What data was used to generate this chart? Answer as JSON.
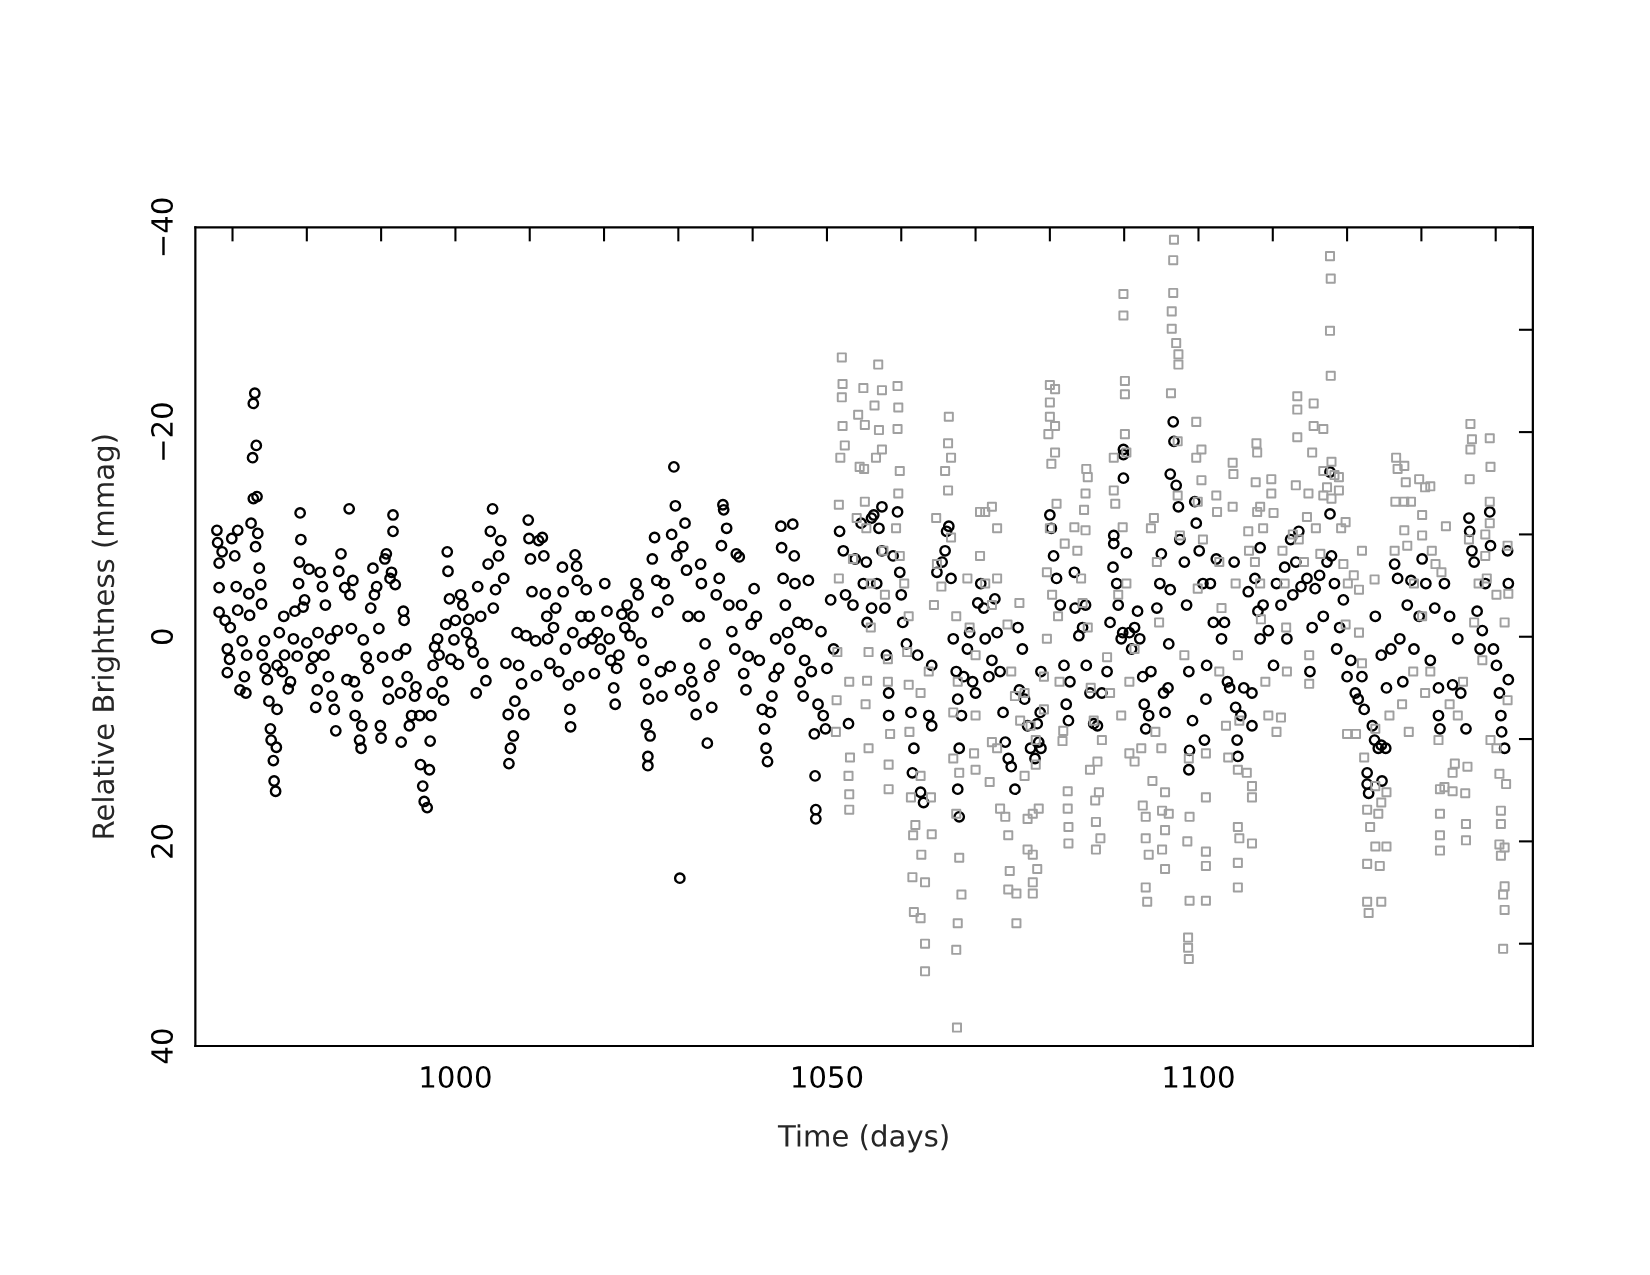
{
  "chart_data": {
    "type": "scatter",
    "xlabel": "Time (days)",
    "ylabel": "Relative Brightness (mmag)",
    "xlim": [
      965,
      1145
    ],
    "ylim": [
      40,
      -40
    ],
    "xticks": [
      {
        "value": 970,
        "label": null
      },
      {
        "value": 980,
        "label": null
      },
      {
        "value": 990,
        "label": null
      },
      1000,
      {
        "value": 1010,
        "label": null
      },
      {
        "value": 1020,
        "label": null
      },
      {
        "value": 1030,
        "label": null
      },
      {
        "value": 1040,
        "label": null
      },
      1050,
      {
        "value": 1060,
        "label": null
      },
      {
        "value": 1070,
        "label": null
      },
      {
        "value": 1080,
        "label": null
      },
      {
        "value": 1090,
        "label": null
      },
      1100,
      {
        "value": 1110,
        "label": null
      },
      {
        "value": 1120,
        "label": null
      },
      {
        "value": 1130,
        "label": null
      },
      {
        "value": 1140,
        "label": null
      }
    ],
    "yticks": [
      {
        "value": -40,
        "label": "−40"
      },
      {
        "value": -30,
        "label": null
      },
      {
        "value": -20,
        "label": "−20"
      },
      {
        "value": -10,
        "label": null
      },
      0,
      {
        "value": 10,
        "label": null
      },
      20,
      {
        "value": 30,
        "label": null
      },
      40
    ],
    "series": [
      {
        "color": "#000000",
        "marker": "circle",
        "x": [
          967.9,
          968.0,
          968.2,
          968.2,
          968.2,
          968.6,
          969.0,
          969.3,
          969.3,
          969.6,
          969.7,
          969.9,
          970.3,
          970.5,
          970.7,
          970.7,
          971.0,
          971.3,
          971.6,
          971.8,
          971.9,
          972.2,
          972.3,
          972.5,
          972.7,
          972.8,
          973.0,
          973.2,
          972.8,
          973.3,
          973.1,
          973.4,
          973.6,
          973.8,
          973.9,
          974.0,
          974.3,
          974.4,
          974.7,
          974.9,
          975.1,
          975.2,
          975.5,
          975.6,
          975.8,
          975.9,
          976.0,
          976.0,
          976.3,
          976.7,
          976.9,
          977.0,
          977.5,
          977.8,
          978.2,
          978.4,
          978.7,
          979.0,
          979.1,
          979.2,
          978.9,
          979.5,
          979.7,
          980.0,
          980.3,
          980.6,
          980.9,
          981.2,
          981.4,
          981.5,
          981.8,
          982.1,
          982.3,
          982.5,
          982.9,
          983.2,
          983.4,
          983.7,
          983.9,
          984.1,
          984.3,
          984.6,
          985.1,
          985.4,
          985.7,
          985.8,
          986.0,
          986.2,
          986.4,
          986.5,
          986.8,
          987.1,
          987.3,
          987.4,
          987.6,
          988.0,
          988.3,
          988.6,
          988.9,
          989.1,
          989.4,
          989.7,
          989.9,
          990.0,
          990.2,
          990.5,
          990.7,
          990.9,
          991.0,
          991.2,
          991.4,
          991.6,
          991.6,
          991.9,
          992.2,
          992.6,
          992.7,
          993.0,
          993.1,
          993.3,
          993.5,
          993.8,
          994.1,
          994.5,
          994.7,
          995.2,
          995.3,
          995.6,
          995.8,
          996.2,
          996.5,
          996.6,
          996.7,
          996.9,
          997.0,
          997.2,
          997.6,
          997.8,
          998.2,
          998.4,
          998.7,
          998.9,
          999.0,
          999.2,
          999.4,
          999.8,
          1000.0,
          1000.4,
          1000.7,
          1001.0,
          1001.5,
          1001.8,
          1002.1,
          1002.4,
          1002.8,
          1003.0,
          1003.4,
          1003.7,
          1004.1,
          1004.4,
          1004.7,
          1005.0,
          1005.1,
          1005.4,
          1005.8,
          1006.1,
          1006.5,
          1006.8,
          1007.1,
          1007.2,
          1007.4,
          1007.8,
          1008.0,
          1008.3,
          1008.5,
          1008.9,
          1009.2,
          1009.5,
          1009.8,
          1009.9,
          1010.1,
          1010.3,
          1010.8,
          1010.9,
          1011.2,
          1011.7,
          1011.9,
          1012.1,
          1012.3,
          1012.4,
          1012.7,
          1013.2,
          1013.5,
          1013.9,
          1014.4,
          1014.5,
          1014.8,
          1015.2,
          1015.4,
          1015.5,
          1015.8,
          1016.1,
          1016.3,
          1016.4,
          1016.6,
          1016.9,
          1017.2,
          1017.6,
          1018.0,
          1018.4,
          1018.7,
          1019.1,
          1019.5,
          1020.1,
          1020.4,
          1020.7,
          1020.9,
          1021.3,
          1021.5,
          1021.7,
          1022.0,
          1022.4,
          1022.8,
          1023.1,
          1023.5,
          1023.9,
          1024.3,
          1024.6,
          1025.0,
          1025.3,
          1025.6,
          1025.7,
          1025.9,
          1025.9,
          1026.2,
          1026.0,
          1026.5,
          1026.8,
          1027.1,
          1027.2,
          1027.6,
          1027.8,
          1028.1,
          1028.6,
          1028.9,
          1029.1,
          1029.4,
          1029.6,
          1029.8,
          1030.2,
          1030.3,
          1030.6,
          1030.9,
          1031.1,
          1031.3,
          1031.5,
          1031.8,
          1032.1,
          1032.4,
          1032.8,
          1033.0,
          1033.1,
          1033.6,
          1033.9,
          1034.2,
          1034.5,
          1034.8,
          1035.1,
          1035.5,
          1035.8,
          1036.0,
          1036.1,
          1036.5,
          1036.8,
          1037.2,
          1037.6,
          1037.8,
          1038.2,
          1038.5,
          1038.8,
          1039.1,
          1039.4,
          1039.8,
          1040.2,
          1040.5,
          1040.9,
          1041.3,
          1041.6,
          1041.8,
          1042.0,
          1042.4,
          1042.6,
          1042.9,
          1043.1,
          1043.5,
          1043.8,
          1043.9,
          1044.1,
          1044.4,
          1044.7,
          1045.0,
          1045.4,
          1045.6,
          1045.7,
          1046.1,
          1046.4,
          1046.8,
          1047.0,
          1047.3,
          1047.5,
          1047.9,
          1048.3,
          1048.4,
          1048.5,
          1048.5,
          1048.8,
          1049.2,
          1049.5,
          1049.8,
          1050.0,
          1050.5,
          1050.9,
          1051.7,
          1052.2,
          1052.5,
          1052.9,
          1053.5,
          1053.8,
          1054.6,
          1054.9,
          1055.3,
          1056.0,
          1056.3,
          1057.0,
          1057.4,
          1057.4,
          1056.7,
          1056.0,
          1055.4,
          1057.8,
          1058.0,
          1058.3,
          1058.3,
          1058.9,
          1059.5,
          1059.8,
          1060.0,
          1060.2,
          1060.7,
          1061.3,
          1061.7,
          1061.5,
          1062.2,
          1062.6,
          1063.0,
          1063.7,
          1064.1,
          1064.1,
          1064.8,
          1065.5,
          1065.9,
          1066.1,
          1066.4,
          1066.7,
          1067.0,
          1067.4,
          1067.6,
          1067.8,
          1067.6,
          1067.8,
          1068.1,
          1068.4,
          1068.9,
          1069.2,
          1069.6,
          1070.0,
          1070.3,
          1070.7,
          1071.1,
          1071.3,
          1071.8,
          1072.2,
          1072.6,
          1072.9,
          1073.3,
          1073.7,
          1074.0,
          1074.4,
          1074.8,
          1075.3,
          1075.7,
          1075.9,
          1076.3,
          1076.6,
          1077.0,
          1077.4,
          1078.0,
          1078.3,
          1078.5,
          1078.7,
          1078.8,
          1078.8,
          1080.0,
          1080.2,
          1080.5,
          1080.9,
          1081.4,
          1081.9,
          1082.2,
          1082.5,
          1082.7,
          1083.3,
          1083.4,
          1083.9,
          1084.4,
          1084.8,
          1084.9,
          1085.4,
          1085.9,
          1086.4,
          1087.0,
          1087.7,
          1088.1,
          1088.5,
          1088.6,
          1088.6,
          1089.0,
          1089.2,
          1089.6,
          1089.8,
          1089.9,
          1089.9,
          1089.9,
          1090.3,
          1090.7,
          1091.0,
          1091.4,
          1091.8,
          1092.1,
          1092.5,
          1092.7,
          1092.9,
          1093.3,
          1093.6,
          1094.4,
          1094.8,
          1095.0,
          1095.3,
          1095.5,
          1095.9,
          1096.0,
          1096.2,
          1096.2,
          1096.6,
          1096.7,
          1097.0,
          1097.3,
          1097.5,
          1098.1,
          1098.4,
          1098.7,
          1098.8,
          1098.7,
          1099.2,
          1099.5,
          1099.7,
          1100.1,
          1100.6,
          1100.8,
          1101.0,
          1101.1,
          1101.6,
          1102.0,
          1102.4,
          1103.1,
          1103.5,
          1103.9,
          1104.2,
          1104.8,
          1105.0,
          1105.2,
          1105.3,
          1105.7,
          1106.1,
          1106.7,
          1107.2,
          1107.2,
          1107.6,
          1108.0,
          1108.3,
          1108.3,
          1108.7,
          1109.4,
          1110.1,
          1110.5,
          1111.1,
          1111.6,
          1111.9,
          1112.4,
          1112.7,
          1113.1,
          1113.5,
          1113.8,
          1114.6,
          1115.0,
          1115.3,
          1115.7,
          1116.3,
          1116.8,
          1117.3,
          1117.7,
          1117.7,
          1117.9,
          1118.3,
          1118.6,
          1119.0,
          1119.5,
          1120.0,
          1120.5,
          1121.1,
          1121.5,
          1122.0,
          1122.3,
          1122.7,
          1122.7,
          1122.9,
          1123.4,
          1123.7,
          1124.2,
          1124.6,
          1125.2,
          1124.7,
          1123.8,
          1124.6,
          1125.3,
          1125.9,
          1126.4,
          1126.8,
          1127.1,
          1127.5,
          1128.1,
          1128.6,
          1129.0,
          1129.7,
          1130.1,
          1130.6,
          1131.2,
          1131.8,
          1132.3,
          1132.3,
          1132.5,
          1133.1,
          1133.8,
          1134.2,
          1134.9,
          1135.3,
          1136.0,
          1136.4,
          1136.5,
          1136.8,
          1137.1,
          1137.5,
          1137.9,
          1138.2,
          1138.6,
          1139.2,
          1139.3,
          1139.7,
          1140.1,
          1140.5,
          1140.7,
          1140.8,
          1141.2,
          1141.6,
          1141.7,
          1141.7
        ],
        "values": [
          -10.4,
          -9.2,
          -7.2,
          -4.8,
          -2.4,
          -8.3,
          -1.6,
          1.2,
          3.5,
          2.2,
          -0.9,
          -9.6,
          -7.9,
          -4.9,
          -10.4,
          -2.6,
          5.2,
          0.4,
          3.9,
          5.5,
          1.8,
          -4.2,
          -2.1,
          -11.1,
          -17.5,
          -22.8,
          -23.8,
          -18.7,
          -13.5,
          -13.7,
          -8.8,
          -10.1,
          -6.7,
          -5.1,
          -3.2,
          1.8,
          0.4,
          3.1,
          4.2,
          6.3,
          9.0,
          10.1,
          12.1,
          14.1,
          15.1,
          10.8,
          7.1,
          2.8,
          -0.4,
          3.4,
          -2.0,
          1.8,
          5.1,
          4.4,
          0.2,
          -2.5,
          1.9,
          -7.3,
          -12.1,
          -9.5,
          -5.2,
          -2.9,
          -3.6,
          0.6,
          -6.6,
          3.1,
          2.0,
          6.9,
          5.2,
          -0.4,
          -6.3,
          -4.9,
          1.8,
          -3.1,
          3.9,
          0.2,
          5.8,
          7.1,
          9.2,
          -0.6,
          -6.4,
          -8.1,
          -4.8,
          4.2,
          -12.5,
          -4.1,
          -0.8,
          -5.5,
          4.4,
          7.7,
          5.8,
          10.1,
          10.9,
          8.7,
          0.3,
          2.0,
          3.1,
          -2.8,
          -6.7,
          -4.1,
          -4.9,
          -0.8,
          8.7,
          9.9,
          2.0,
          -7.6,
          -8.1,
          4.4,
          6.1,
          -5.7,
          -6.3,
          -11.9,
          -10.3,
          -5.1,
          1.8,
          5.5,
          10.3,
          -2.5,
          -1.6,
          1.2,
          3.9,
          8.7,
          7.7,
          5.8,
          4.9,
          7.7,
          12.5,
          14.6,
          16.1,
          16.7,
          13.0,
          10.2,
          7.7,
          5.5,
          2.8,
          1.0,
          0.2,
          1.8,
          4.4,
          6.2,
          -1.2,
          -8.3,
          -6.4,
          -3.7,
          2.2,
          0.3,
          -1.6,
          2.7,
          -4.1,
          -3.1,
          -0.4,
          -1.7,
          0.6,
          1.5,
          5.5,
          -4.9,
          -2.0,
          2.6,
          4.3,
          -7.1,
          -10.3,
          -12.5,
          -2.8,
          -4.6,
          -7.9,
          -9.4,
          -5.7,
          2.6,
          7.6,
          12.4,
          10.9,
          9.7,
          6.3,
          -0.4,
          2.8,
          4.6,
          7.6,
          -0.1,
          -11.4,
          -9.6,
          -7.6,
          -4.4,
          0.4,
          3.8,
          -9.4,
          -9.7,
          -7.9,
          -4.2,
          -2.0,
          0.2,
          2.6,
          -0.9,
          -2.8,
          3.4,
          -6.8,
          -4.4,
          1.2,
          4.7,
          7.1,
          8.8,
          -0.4,
          -8.0,
          -6.9,
          -5.5,
          3.9,
          -2.0,
          0.6,
          -4.6,
          -2.0,
          0.2,
          3.6,
          -0.4,
          1.2,
          -5.2,
          -2.5,
          0.2,
          2.3,
          5.0,
          6.6,
          3.1,
          1.8,
          -2.2,
          -0.9,
          -3.1,
          -0.1,
          -2.0,
          -5.2,
          -4.1,
          0.6,
          2.3,
          4.6,
          8.6,
          11.7,
          12.6,
          9.7,
          6.1,
          -7.6,
          -9.7,
          -5.5,
          -2.4,
          3.4,
          5.8,
          -5.2,
          -3.6,
          2.9,
          -10.0,
          -16.6,
          -12.8,
          -7.9,
          23.6,
          5.2,
          -8.8,
          -11.1,
          -6.5,
          -2.0,
          3.1,
          4.4,
          5.8,
          7.6,
          -2.0,
          -7.1,
          -5.2,
          0.7,
          10.4,
          3.9,
          6.9,
          2.8,
          -4.1,
          -5.7,
          -8.9,
          -12.9,
          -12.4,
          -10.6,
          -3.1,
          -0.5,
          1.2,
          -8.1,
          -7.8,
          -3.1,
          3.6,
          5.2,
          1.9,
          -1.2,
          -4.7,
          -2.0,
          2.3,
          7.1,
          9.0,
          10.9,
          12.2,
          7.4,
          5.8,
          3.9,
          0.2,
          3.1,
          -10.8,
          -8.7,
          -5.7,
          -3.1,
          -0.4,
          1.2,
          -11.0,
          -7.9,
          -5.2,
          -1.4,
          4.4,
          5.8,
          2.3,
          -1.2,
          -5.5,
          3.4,
          9.5,
          13.6,
          16.9,
          17.8,
          6.6,
          -0.5,
          7.7,
          9.0,
          3.1,
          -3.6,
          1.2,
          -10.3,
          -8.4,
          -4.1,
          8.5,
          -3.1,
          -7.6,
          -11.1,
          -5.2,
          -7.3,
          -11.6,
          -11.9,
          -10.6,
          -12.7,
          -8.4,
          -5.2,
          -2.8,
          -1.4,
          -2.8,
          1.8,
          5.5,
          7.7,
          -7.9,
          -12.2,
          -6.3,
          -4.1,
          -1.4,
          0.7,
          7.4,
          10.9,
          13.3,
          1.8,
          15.2,
          16.2,
          7.7,
          8.7,
          2.8,
          -6.3,
          -7.3,
          -8.4,
          -10.3,
          -10.8,
          -5.7,
          0.2,
          3.4,
          6.1,
          10.9,
          14.9,
          17.6,
          7.7,
          3.9,
          1.2,
          -0.4,
          4.4,
          5.5,
          -3.3,
          -5.2,
          -2.8,
          0.2,
          3.9,
          2.3,
          -3.7,
          -0.4,
          3.4,
          7.4,
          10.3,
          11.9,
          12.7,
          14.9,
          -0.9,
          5.2,
          1.2,
          6.1,
          8.7,
          10.9,
          11.9,
          8.5,
          10.3,
          7.4,
          10.9,
          3.4,
          -11.9,
          -10.6,
          -7.9,
          -5.7,
          -3.1,
          2.8,
          6.6,
          8.2,
          4.4,
          -6.3,
          -2.8,
          -0.1,
          -0.9,
          -3.1,
          2.8,
          5.5,
          8.5,
          8.7,
          5.5,
          3.4,
          -1.4,
          -6.8,
          -9.9,
          -9.1,
          -5.2,
          -3.1,
          0.2,
          -0.4,
          -18.3,
          -17.8,
          -15.5,
          -8.2,
          -0.4,
          1.2,
          -0.9,
          -2.5,
          0.2,
          3.9,
          6.6,
          9.0,
          7.7,
          3.4,
          -2.8,
          -5.2,
          -8.1,
          5.5,
          7.4,
          5.0,
          0.7,
          -4.6,
          -15.9,
          -21.0,
          -19.1,
          -14.8,
          -12.7,
          -9.5,
          -7.3,
          -3.1,
          3.4,
          11.1,
          13.0,
          8.2,
          -13.2,
          -11.1,
          -8.4,
          -5.2,
          10.1,
          6.1,
          2.8,
          -5.2,
          -1.4,
          -7.6,
          0.2,
          -1.4,
          4.4,
          5.0,
          -7.3,
          6.9,
          10.1,
          11.7,
          7.7,
          5.0,
          -4.4,
          5.5,
          8.7,
          -5.7,
          -2.5,
          -8.7,
          0.2,
          -3.1,
          -0.6,
          2.8,
          -5.2,
          -3.1,
          -6.8,
          0.2,
          -9.5,
          -4.1,
          -7.3,
          -10.3,
          -4.9,
          -5.7,
          3.4,
          -0.9,
          -4.7,
          -6.0,
          -2.0,
          -7.3,
          -12.0,
          -16.1,
          -7.9,
          -5.2,
          1.2,
          -0.9,
          -3.6,
          3.9,
          2.3,
          5.5,
          6.1,
          3.9,
          7.1,
          13.3,
          14.4,
          15.3,
          8.7,
          10.1,
          10.9,
          10.6,
          10.9,
          14.1,
          -2.0,
          1.8,
          5.0,
          1.2,
          -7.1,
          -5.7,
          0.2,
          4.4,
          -3.1,
          -5.5,
          1.2,
          -2.0,
          -7.6,
          -5.2,
          2.3,
          -2.8,
          5.0,
          7.7,
          9.0,
          -5.2,
          -2.0,
          4.7,
          0.2,
          5.5,
          9.0,
          -11.6,
          -10.3,
          -8.4,
          -7.3,
          -2.5,
          1.2,
          -0.6,
          -5.2,
          -12.2,
          -8.9,
          1.2,
          2.8,
          5.5,
          7.7,
          9.3,
          10.9,
          -8.4,
          -5.2,
          4.2
        ]
      },
      {
        "color": "#a0a0a0",
        "marker": "square",
        "x": [
          1052.0,
          1052.1,
          1052.0,
          1052.1,
          1052.4,
          1051.8,
          1051.6,
          1051.6,
          1051.4,
          1051.3,
          1051.2,
          1053.1,
          1052.9,
          1053.0,
          1053.0,
          1053.0,
          1053.5,
          1054.0,
          1054.2,
          1054.4,
          1054.9,
          1055.1,
          1055.1,
          1055.4,
          1055.6,
          1055.2,
          1056.4,
          1056.6,
          1056.9,
          1057.4,
          1057.0,
          1057.4,
          1059.5,
          1059.6,
          1059.5,
          1059.8,
          1059.6,
          1055.0,
          1055.3,
          1055.9,
          1055.9,
          1055.6,
          1057.6,
          1057.8,
          1058.2,
          1058.2,
          1058.5,
          1058.3,
          1058.3,
          1059.3,
          1059.8,
          1060.4,
          1061.0,
          1060.8,
          1061.0,
          1061.1,
          1061.3,
          1061.6,
          1061.9,
          1061.5,
          1061.7,
          1062.6,
          1062.7,
          1063.2,
          1063.2,
          1063.2,
          1064.1,
          1064.0,
          1062.6,
          1062.6,
          1063.7,
          1064.4,
          1064.8,
          1065.4,
          1064.7,
          1065.9,
          1066.3,
          1066.4,
          1066.7,
          1066.3,
          1066.7,
          1067.4,
          1067.6,
          1067.0,
          1067.0,
          1067.8,
          1067.4,
          1067.8,
          1068.1,
          1067.6,
          1067.4,
          1067.5,
          1069.2,
          1068.9,
          1070.0,
          1070.6,
          1071.3,
          1072.2,
          1070.6,
          1071.3,
          1072.2,
          1072.9,
          1072.9,
          1070.0,
          1069.8,
          1070.0,
          1071.9,
          1072.2,
          1072.9,
          1073.3,
          1074.0,
          1074.4,
          1074.6,
          1074.4,
          1075.5,
          1075.5,
          1075.9,
          1074.3,
          1074.8,
          1075.3,
          1076.0,
          1076.6,
          1077.0,
          1077.7,
          1078.5,
          1077.0,
          1077.7,
          1078.3,
          1077.7,
          1077.7,
          1076.6,
          1077.4,
          1078.1,
          1078.1,
          1079.2,
          1079.2,
          1079.6,
          1080.0,
          1080.7,
          1080.0,
          1080.0,
          1080.7,
          1079.8,
          1080.7,
          1080.2,
          1080.9,
          1080.0,
          1080.3,
          1081.1,
          1079.6,
          1081.3,
          1081.8,
          1081.7,
          1082.4,
          1082.4,
          1082.5,
          1082.5,
          1082.0,
          1083.3,
          1083.7,
          1084.2,
          1084.8,
          1084.6,
          1084.8,
          1085.1,
          1084.9,
          1084.4,
          1085.1,
          1085.5,
          1085.9,
          1085.4,
          1086.4,
          1086.1,
          1086.2,
          1086.6,
          1086.8,
          1086.2,
          1087.0,
          1087.7,
          1088.1,
          1088.6,
          1088.6,
          1088.8,
          1089.2,
          1089.8,
          1089.9,
          1089.9,
          1090.1,
          1090.1,
          1090.1,
          1090.3,
          1090.3,
          1089.6,
          1090.7,
          1091.4,
          1090.7,
          1091.4,
          1092.3,
          1092.5,
          1092.9,
          1092.9,
          1093.3,
          1092.9,
          1093.1,
          1093.8,
          1094.2,
          1093.6,
          1094.0,
          1094.4,
          1094.7,
          1095.0,
          1095.5,
          1095.1,
          1095.5,
          1095.1,
          1095.5,
          1096.0,
          1096.3,
          1096.4,
          1096.4,
          1096.6,
          1096.7,
          1096.6,
          1097.0,
          1097.3,
          1097.3,
          1097.2,
          1097.2,
          1097.5,
          1098.1,
          1098.6,
          1098.6,
          1098.7,
          1098.8,
          1098.5,
          1098.8,
          1098.7,
          1099.7,
          1099.7,
          1100.4,
          1099.9,
          1100.4,
          1100.6,
          1099.9,
          1101.0,
          1101.0,
          1101.0,
          1101.0,
          1101.0,
          1102.4,
          1102.5,
          1102.8,
          1103.1,
          1102.8,
          1103.7,
          1104.0,
          1104.6,
          1104.7,
          1104.6,
          1105.0,
          1105.3,
          1105.5,
          1105.3,
          1105.3,
          1105.5,
          1105.3,
          1105.3,
          1106.5,
          1107.2,
          1107.2,
          1107.2,
          1106.7,
          1106.8,
          1107.6,
          1107.8,
          1107.9,
          1107.7,
          1107.9,
          1108.3,
          1108.7,
          1108.3,
          1108.4,
          1109.0,
          1109.4,
          1109.8,
          1109.8,
          1110.1,
          1110.5,
          1111.1,
          1111.3,
          1111.6,
          1111.8,
          1111.9,
          1112.7,
          1113.1,
          1113.3,
          1113.3,
          1113.3,
          1113.5,
          1114.2,
          1114.6,
          1114.8,
          1114.9,
          1114.9,
          1115.3,
          1115.5,
          1115.5,
          1116.8,
          1115.8,
          1116.4,
          1116.8,
          1116.8,
          1117.3,
          1117.7,
          1117.8,
          1117.7,
          1117.8,
          1117.9,
          1117.9,
          1118.3,
          1118.9,
          1118.9,
          1119.2,
          1119.8,
          1119.5,
          1120.1,
          1120.9,
          1121.6,
          1121.6,
          1122.0,
          1119.8,
          1120.0,
          1121.2,
          1122.0,
          1122.3,
          1122.7,
          1122.7,
          1122.7,
          1122.9,
          1123.1,
          1123.8,
          1124.4,
          1124.6,
          1124.2,
          1124.6,
          1125.3,
          1125.3,
          1123.8,
          1123.8,
          1123.7,
          1125.7,
          1126.4,
          1126.5,
          1126.6,
          1126.8,
          1127.7,
          1127.9,
          1127.7,
          1128.6,
          1127.7,
          1128.1,
          1128.3,
          1127.4,
          1129.0,
          1128.9,
          1129.7,
          1130.5,
          1131.2,
          1130.1,
          1130.1,
          1130.5,
          1131.2,
          1130.1,
          1131.4,
          1131.9,
          1132.7,
          1133.3,
          1132.3,
          1132.5,
          1132.5,
          1132.5,
          1132.5,
          1133.1,
          1134.2,
          1134.2,
          1134.5,
          1135.9,
          1136.0,
          1136.0,
          1136.2,
          1133.8,
          1134.9,
          1135.6,
          1136.4,
          1136.5,
          1136.6,
          1136.8,
          1136.6,
          1139.2,
          1139.3,
          1139.2,
          1139.2,
          1138.6,
          1138.6,
          1138.8,
          1137.7,
          1137.1,
          1138.2,
          1139.3,
          1140.1,
          1140.5,
          1141.4,
          1140.7,
          1140.7,
          1140.5,
          1140.7,
          1141.2,
          1141.2,
          1141.0,
          1141.2,
          1141.0,
          1141.6,
          1141.7,
          1141.2,
          1141.6,
          1140.1
        ],
        "values": [
          -27.3,
          -24.7,
          -23.4,
          -20.6,
          -18.7,
          -17.5,
          -12.9,
          -5.7,
          1.5,
          6.2,
          9.3,
          11.8,
          13.6,
          15.4,
          16.9,
          4.4,
          -7.6,
          -11.6,
          -21.7,
          -16.6,
          -24.3,
          -20.7,
          -13.2,
          4.3,
          10.9,
          6.6,
          -22.6,
          -17.5,
          -26.6,
          -24.1,
          -20.2,
          -18.3,
          -24.5,
          -22.4,
          -20.3,
          -16.2,
          -14.0,
          -16.4,
          -10.6,
          -5.2,
          -0.9,
          1.5,
          -8.4,
          -4.1,
          2.2,
          4.4,
          9.5,
          12.5,
          14.9,
          -10.6,
          -7.9,
          -5.2,
          -2.0,
          1.5,
          4.7,
          9.3,
          15.7,
          19.4,
          18.4,
          23.5,
          26.9,
          27.5,
          21.3,
          24.0,
          30.0,
          32.7,
          19.3,
          15.7,
          13.6,
          5.5,
          3.4,
          -3.1,
          -7.1,
          -4.9,
          -11.6,
          -16.2,
          -18.9,
          -21.5,
          -17.5,
          -14.3,
          -9.7,
          -2.0,
          4.4,
          7.4,
          11.9,
          13.3,
          17.3,
          21.6,
          25.2,
          28.0,
          30.6,
          38.2,
          -0.9,
          -5.7,
          1.8,
          -12.2,
          -12.2,
          -12.7,
          -7.9,
          -5.2,
          -3.1,
          -10.6,
          -5.7,
          7.7,
          11.4,
          13.0,
          14.2,
          10.3,
          10.9,
          16.8,
          17.6,
          19.4,
          22.9,
          24.7,
          25.1,
          28.0,
          -3.3,
          -1.2,
          3.4,
          5.8,
          8.2,
          13.6,
          17.8,
          17.3,
          16.8,
          20.8,
          21.3,
          22.7,
          24.0,
          25.1,
          5.5,
          8.7,
          10.1,
          12.5,
          7.1,
          3.9,
          -6.3,
          -24.6,
          -24.2,
          -22.9,
          -21.5,
          -20.6,
          -19.8,
          -18.0,
          -16.9,
          -13.0,
          -10.6,
          -4.1,
          -2.0,
          0.2,
          4.4,
          9.2,
          10.2,
          15.1,
          16.8,
          18.6,
          20.2,
          -9.1,
          -10.7,
          -8.4,
          -5.7,
          -10.4,
          -12.4,
          -14.0,
          -15.6,
          -16.4,
          -3.3,
          -0.9,
          5.0,
          8.2,
          13.0,
          12.2,
          16.0,
          18.1,
          15.2,
          19.7,
          20.8,
          10.1,
          2.0,
          5.5,
          -17.5,
          -14.3,
          -13.0,
          -4.1,
          -10.7,
          -33.5,
          -31.4,
          -25.0,
          -23.7,
          -19.8,
          -18.0,
          -5.2,
          7.7,
          4.4,
          1.2,
          11.4,
          12.2,
          10.9,
          16.5,
          17.6,
          19.7,
          21.3,
          24.5,
          25.9,
          14.1,
          9.3,
          -10.6,
          -11.6,
          -7.3,
          -1.4,
          10.9,
          15.2,
          17.0,
          18.9,
          20.8,
          22.7,
          17.3,
          -23.8,
          -30.1,
          -31.8,
          -36.8,
          -38.8,
          -33.6,
          -28.7,
          -27.6,
          -26.6,
          -19.1,
          -13.8,
          -9.9,
          1.8,
          29.4,
          30.4,
          31.5,
          25.8,
          20.0,
          17.6,
          11.9,
          -21.0,
          -17.5,
          -18.3,
          -13.2,
          -15.3,
          -9.5,
          -4.7,
          15.7,
          21.0,
          22.4,
          25.8,
          11.4,
          -13.8,
          -12.2,
          -7.3,
          -2.8,
          3.4,
          8.7,
          11.8,
          -17.0,
          -15.9,
          -12.7,
          -5.2,
          1.8,
          8.2,
          13.0,
          18.6,
          19.7,
          22.1,
          24.5,
          13.3,
          14.6,
          15.7,
          20.2,
          -10.3,
          -8.4,
          -7.3,
          -18.9,
          -18.0,
          -15.1,
          -12.2,
          -12.7,
          -10.6,
          -5.2,
          -1.7,
          4.4,
          7.7,
          -15.4,
          -14.0,
          -12.1,
          9.3,
          7.9,
          -8.4,
          -5.2,
          -0.9,
          3.4,
          -10.0,
          -14.8,
          -23.5,
          -22.2,
          -19.5,
          -9.5,
          -7.3,
          -11.7,
          -14.0,
          1.8,
          4.6,
          -18.0,
          -22.8,
          -20.6,
          -20.3,
          -10.6,
          -8.1,
          -13.8,
          -16.2,
          -14.6,
          -37.2,
          -35.0,
          -29.9,
          -25.5,
          -17.1,
          -13.5,
          -15.8,
          -15.6,
          -14.3,
          -10.6,
          -11.2,
          -7.1,
          -5.2,
          -6.0,
          -4.6,
          -0.4,
          2.6,
          -1.2,
          9.5,
          9.5,
          -8.4,
          11.8,
          16.9,
          22.2,
          25.9,
          27.0,
          18.6,
          20.5,
          22.4,
          25.9,
          17.3,
          16.2,
          15.2,
          20.5,
          14.6,
          9.0,
          -5.6,
          7.7,
          -8.4,
          -13.2,
          -17.5,
          -16.4,
          -16.7,
          -15.1,
          -13.2,
          -13.2,
          -10.4,
          -8.9,
          9.3,
          6.6,
          -5.2,
          3.4,
          -15.4,
          -14.6,
          -14.7,
          -11.9,
          -9.9,
          5.5,
          3.4,
          -2.0,
          -8.4,
          -7.1,
          -6.3,
          -10.8,
          10.1,
          14.9,
          17.3,
          19.4,
          20.9,
          14.7,
          15.1,
          13.3,
          12.4,
          15.3,
          18.3,
          19.9,
          12.7,
          6.6,
          7.7,
          4.4,
          -9.5,
          -15.4,
          -18.3,
          -19.3,
          -20.8,
          -19.4,
          -16.6,
          -13.2,
          -11.1,
          -10.0,
          -7.9,
          -5.7,
          -5.2,
          -1.4,
          2.3,
          10.1,
          10.9,
          13.4,
          14.4,
          17.0,
          18.3,
          20.3,
          21.4,
          20.6,
          24.4,
          25.2,
          26.7,
          30.5,
          -8.9,
          -4.2,
          -1.4,
          6.2,
          -4.1
        ]
      }
    ]
  }
}
